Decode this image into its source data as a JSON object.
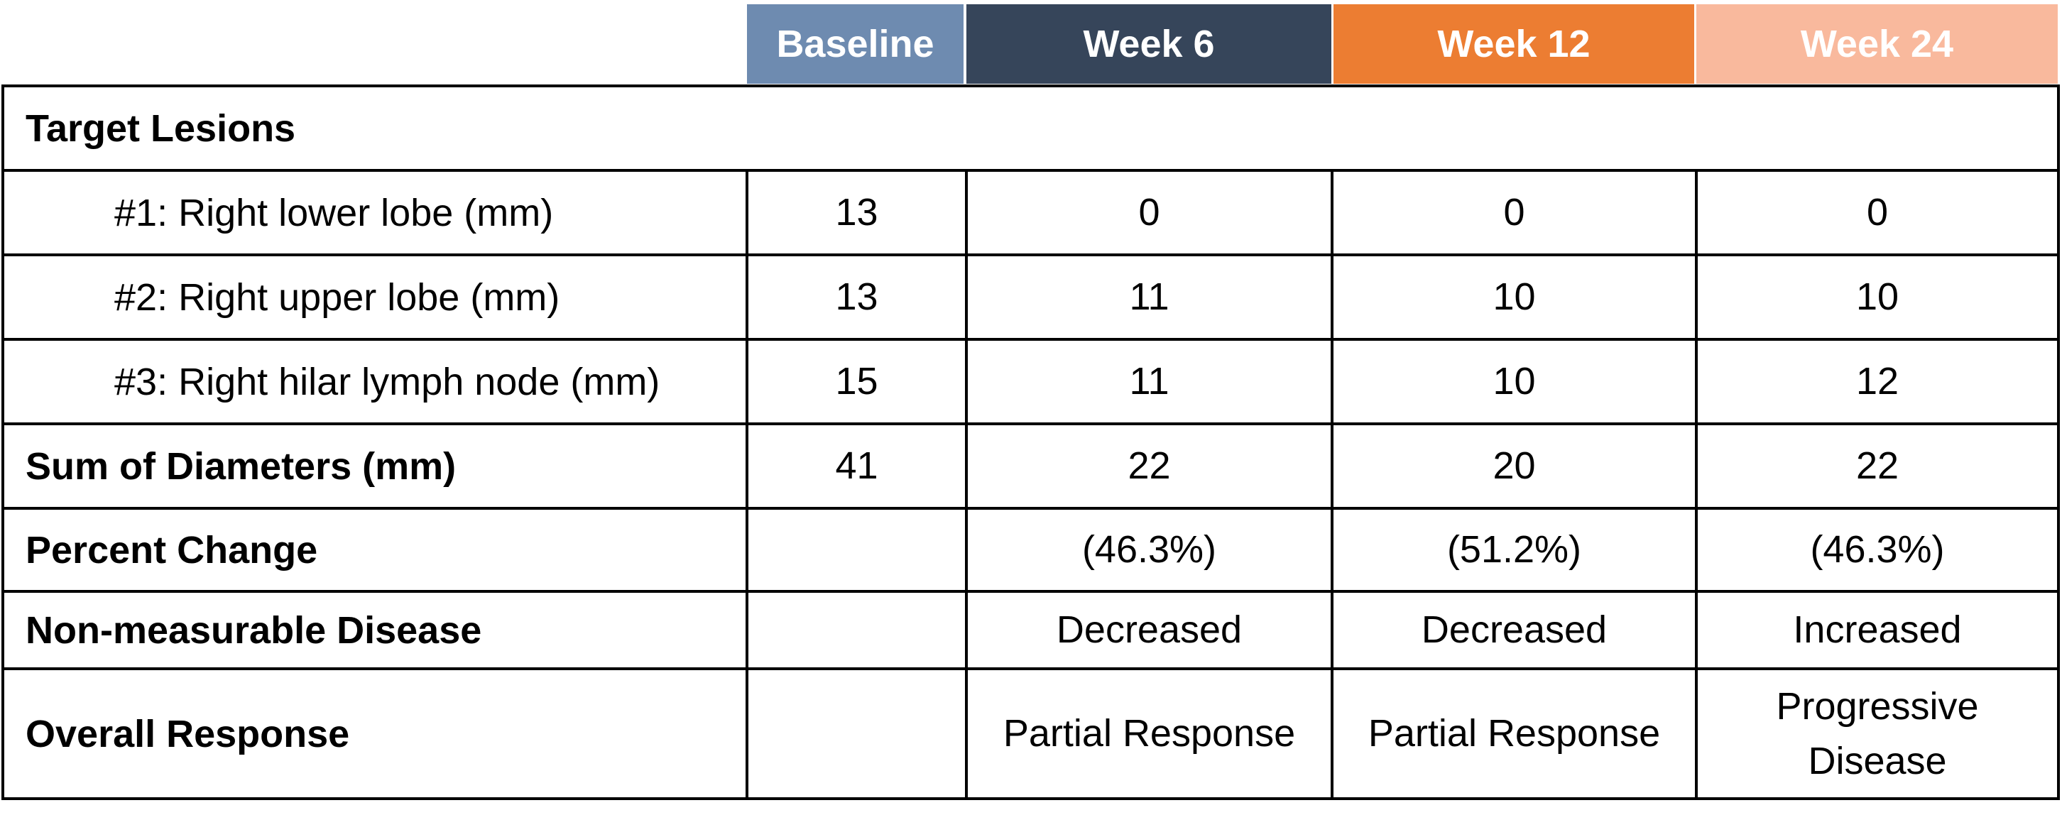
{
  "header": {
    "columns": [
      "Baseline",
      "Week 6",
      "Week 12",
      "Week 24"
    ],
    "colors": [
      "#6e8bb0",
      "#36455a",
      "#ec7d32",
      "#f9b99d"
    ]
  },
  "section_title": "Target Lesions",
  "rows": [
    {
      "label": "#1: Right lower lobe (mm)",
      "values": [
        "13",
        "0",
        "0",
        "0"
      ]
    },
    {
      "label": "#2: Right upper lobe (mm)",
      "values": [
        "13",
        "11",
        "10",
        "10"
      ]
    },
    {
      "label": "#3: Right hilar lymph node (mm)",
      "values": [
        "15",
        "11",
        "10",
        "12"
      ]
    },
    {
      "label": "Sum of Diameters (mm)",
      "values": [
        "41",
        "22",
        "20",
        "22"
      ]
    },
    {
      "label": "Percent Change",
      "values": [
        "",
        "(46.3%)",
        "(51.2%)",
        "(46.3%)"
      ]
    },
    {
      "label": "Non-measurable Disease",
      "values": [
        "",
        "Decreased",
        "Decreased",
        "Increased"
      ]
    },
    {
      "label": "Overall Response",
      "values": [
        "",
        "Partial Response",
        "Partial Response",
        "Progressive Disease"
      ]
    }
  ]
}
